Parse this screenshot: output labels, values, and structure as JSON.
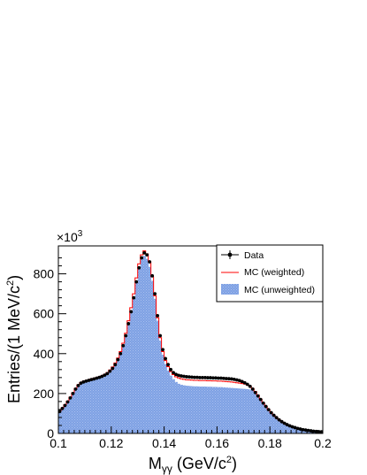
{
  "chart_data": {
    "type": "bar",
    "xlabel": "M",
    "xlabel_sub": "γγ",
    "xlabel_unit": " (GeV/c",
    "xlabel_unit_sup": "2",
    "xlabel_unit_close": ")",
    "ylabel": "Entries/(1 MeV/c",
    "ylabel_sup": "2",
    "ylabel_close": ")",
    "y_multiplier_base": "×10",
    "y_multiplier_exp": "3",
    "xlim": [
      0.1,
      0.2
    ],
    "ylim": [
      0,
      940
    ],
    "x_ticks": [
      0.1,
      0.12,
      0.14,
      0.16,
      0.18,
      0.2
    ],
    "x_tick_labels": [
      "0.1",
      "0.12",
      "0.14",
      "0.16",
      "0.18",
      "0.2"
    ],
    "y_ticks": [
      0,
      200,
      400,
      600,
      800
    ],
    "y_tick_labels": [
      "0",
      "200",
      "400",
      "600",
      "800"
    ],
    "grid": false,
    "legend_position": "top-right",
    "bin_width": 0.001,
    "x": [
      0.1005,
      0.1015,
      0.1025,
      0.1035,
      0.1045,
      0.1055,
      0.1065,
      0.1075,
      0.1085,
      0.1095,
      0.1105,
      0.1115,
      0.1125,
      0.1135,
      0.1145,
      0.1155,
      0.1165,
      0.1175,
      0.1185,
      0.1195,
      0.1205,
      0.1215,
      0.1225,
      0.1235,
      0.1245,
      0.1255,
      0.1265,
      0.1275,
      0.1285,
      0.1295,
      0.1305,
      0.1315,
      0.1325,
      0.1335,
      0.1345,
      0.1355,
      0.1365,
      0.1375,
      0.1385,
      0.1395,
      0.1405,
      0.1415,
      0.1425,
      0.1435,
      0.1445,
      0.1455,
      0.1465,
      0.1475,
      0.1485,
      0.1495,
      0.1505,
      0.1515,
      0.1525,
      0.1535,
      0.1545,
      0.1555,
      0.1565,
      0.1575,
      0.1585,
      0.1595,
      0.1605,
      0.1615,
      0.1625,
      0.1635,
      0.1645,
      0.1655,
      0.1665,
      0.1675,
      0.1685,
      0.1695,
      0.1705,
      0.1715,
      0.1725,
      0.1735,
      0.1745,
      0.1755,
      0.1765,
      0.1775,
      0.1785,
      0.1795,
      0.1805,
      0.1815,
      0.1825,
      0.1835,
      0.1845,
      0.1855,
      0.1865,
      0.1875,
      0.1885,
      0.1895,
      0.1905,
      0.1915,
      0.1925,
      0.1935,
      0.1945,
      0.1955,
      0.1965,
      0.1975,
      0.1985,
      0.1995
    ],
    "series": [
      {
        "name": "Data",
        "style": "points",
        "color": "#000000",
        "values": [
          110,
          125,
          140,
          158,
          178,
          200,
          222,
          240,
          252,
          258,
          262,
          266,
          270,
          273,
          277,
          281,
          286,
          292,
          300,
          312,
          326,
          345,
          370,
          400,
          440,
          490,
          550,
          610,
          680,
          760,
          830,
          880,
          905,
          895,
          860,
          790,
          700,
          590,
          490,
          420,
          375,
          345,
          320,
          305,
          296,
          291,
          288,
          286,
          284,
          283,
          282,
          281,
          281,
          280,
          280,
          280,
          279,
          279,
          278,
          278,
          277,
          277,
          276,
          275,
          274,
          273,
          271,
          268,
          265,
          260,
          254,
          246,
          236,
          222,
          205,
          188,
          170,
          152,
          135,
          119,
          104,
          91,
          79,
          68,
          59,
          51,
          44,
          38,
          33,
          29,
          25,
          22,
          19,
          17,
          15,
          13,
          11,
          10,
          9,
          8
        ]
      },
      {
        "name": "MC (weighted)",
        "style": "step",
        "color": "#ff0000",
        "values": [
          112,
          128,
          144,
          162,
          182,
          204,
          226,
          244,
          255,
          261,
          265,
          269,
          273,
          276,
          280,
          284,
          289,
          296,
          305,
          318,
          333,
          353,
          378,
          410,
          452,
          502,
          565,
          630,
          700,
          780,
          850,
          895,
          915,
          900,
          860,
          785,
          690,
          580,
          480,
          410,
          365,
          335,
          310,
          295,
          284,
          278,
          274,
          271,
          269,
          268,
          267,
          266,
          266,
          265,
          265,
          265,
          264,
          264,
          263,
          263,
          262,
          262,
          261,
          260,
          259,
          258,
          256,
          254,
          252,
          250,
          247,
          243,
          236,
          225,
          210,
          192,
          172,
          153,
          135,
          119,
          104,
          91,
          79,
          68,
          59,
          51,
          44,
          38,
          33,
          29,
          25,
          22,
          19,
          17,
          15,
          13,
          11,
          10,
          9,
          8
        ]
      },
      {
        "name": "MC (unweighted)",
        "style": "filled",
        "color": "#7da0e4",
        "values": [
          110,
          124,
          140,
          158,
          178,
          200,
          222,
          240,
          250,
          255,
          258,
          262,
          266,
          269,
          273,
          277,
          282,
          288,
          296,
          308,
          322,
          340,
          365,
          395,
          435,
          485,
          545,
          610,
          680,
          760,
          830,
          875,
          890,
          875,
          835,
          765,
          675,
          565,
          465,
          395,
          348,
          315,
          290,
          272,
          258,
          249,
          244,
          241,
          239,
          238,
          237,
          236,
          236,
          235,
          235,
          235,
          234,
          234,
          233,
          233,
          232,
          232,
          231,
          230,
          229,
          228,
          227,
          226,
          225,
          224,
          223,
          222,
          220,
          215,
          205,
          190,
          172,
          153,
          135,
          119,
          104,
          91,
          79,
          68,
          59,
          51,
          44,
          38,
          33,
          29,
          25,
          22,
          19,
          17,
          15,
          13,
          11,
          10,
          9,
          8
        ]
      }
    ]
  }
}
